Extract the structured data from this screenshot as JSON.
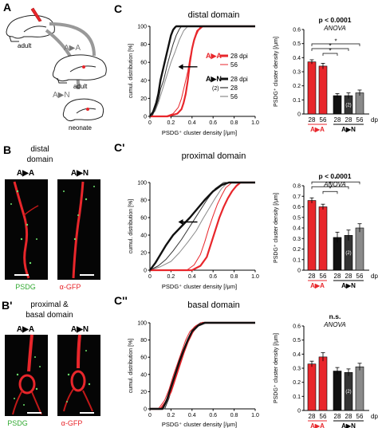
{
  "colors": {
    "red": "#e8262b",
    "black": "#111111",
    "darkgray": "#333333",
    "gray": "#8a8a8a",
    "green": "#33aa33",
    "micro_bg": "#050505",
    "dendrite": "#e8262b"
  },
  "panels": {
    "A": {
      "label": "A",
      "adult_top": "adult",
      "aa": "A▶A",
      "adult_mid": "adult",
      "an": "A▶N",
      "neonate": "neonate"
    },
    "B": {
      "label": "B",
      "title1": "distal",
      "title2": "domain",
      "img1_label": "A▶A",
      "img2_label": "A▶N",
      "stain1": "PSDG",
      "stain2": "α-GFP"
    },
    "B2": {
      "label": "B'",
      "title1": "proximal  &",
      "title2": "basal domain",
      "img1_label": "A▶A",
      "img2_label": "A▶N",
      "stain1": "PSDG",
      "stain2": "α-GFP"
    }
  },
  "cdf_common": {
    "ylabel": "cumul. distribution [%]",
    "xlabel": "PSDG⁺ cluster density [/μm]",
    "xticks": [
      "0",
      "0.2",
      "0.4",
      "0.6",
      "0.8",
      "1.0"
    ],
    "yticks": [
      "0",
      "20",
      "40",
      "60",
      "80",
      "100"
    ]
  },
  "bar_common": {
    "ylabel": "PSDG⁺ cluster density [/μm]",
    "xticks": [
      "28",
      "28",
      "28",
      "56",
      "dpi"
    ],
    "group1": "A▶A",
    "group2": "A▶N",
    "n_mark": "(2)"
  },
  "legend": {
    "aa_label": "A▶A",
    "aa_28": "28 dpi",
    "aa_56": "56",
    "an_label": "A▶N",
    "an_28dpi": "28 dpi",
    "an_2": "(2)",
    "an_28": "28",
    "an_56": "56"
  },
  "chart_data": [
    {
      "panel": "C",
      "type": "line",
      "title": "distal domain",
      "xlabel": "PSDG⁺ cluster density [/μm]",
      "ylabel": "cumul. distribution [%]",
      "xlim": [
        0,
        1.0
      ],
      "ylim": [
        0,
        100
      ],
      "series": [
        {
          "name": "A▶A 28 dpi",
          "x": [
            0.17,
            0.26,
            0.3,
            0.32,
            0.34,
            0.36,
            0.38,
            0.4,
            0.42,
            0.45,
            0.5
          ],
          "y": [
            0,
            3,
            8,
            15,
            25,
            40,
            60,
            75,
            85,
            95,
            100
          ]
        },
        {
          "name": "A▶A 56",
          "x": [
            0.15,
            0.22,
            0.27,
            0.3,
            0.33,
            0.36,
            0.38,
            0.41,
            0.44,
            0.48
          ],
          "y": [
            0,
            3,
            10,
            20,
            35,
            50,
            65,
            80,
            90,
            100
          ]
        },
        {
          "name": "A▶N 28 dpi",
          "x": [
            0.0,
            0.03,
            0.06,
            0.08,
            0.1,
            0.12,
            0.14,
            0.16,
            0.18,
            0.2,
            0.22,
            0.24,
            0.25
          ],
          "y": [
            0,
            5,
            15,
            25,
            40,
            50,
            60,
            70,
            80,
            90,
            96,
            99,
            100
          ]
        },
        {
          "name": "A▶N (2) 28",
          "x": [
            0.02,
            0.05,
            0.08,
            0.1,
            0.13,
            0.16,
            0.19,
            0.22,
            0.25,
            0.28,
            0.3
          ],
          "y": [
            0,
            8,
            18,
            30,
            40,
            55,
            68,
            80,
            90,
            97,
            100
          ]
        },
        {
          "name": "A▶N 56",
          "x": [
            0.0,
            0.05,
            0.08,
            0.12,
            0.16,
            0.2,
            0.24,
            0.28,
            0.32,
            0.36
          ],
          "y": [
            0,
            6,
            15,
            30,
            45,
            60,
            72,
            85,
            95,
            100
          ]
        }
      ],
      "annotations": [
        "←"
      ]
    },
    {
      "panel": "C",
      "type": "bar",
      "title": "p < 0.0001",
      "subtitle": "ANOVA",
      "ylabel": "PSDG⁺ cluster density [/μm]",
      "ylim": [
        0,
        0.6
      ],
      "yticks": [
        "0",
        "0.1",
        "0.2",
        "0.3",
        "0.4",
        "0.5",
        "0.6"
      ],
      "categories": [
        "28",
        "56",
        "28",
        "28",
        "56"
      ],
      "values": [
        0.37,
        0.34,
        0.13,
        0.13,
        0.15
      ],
      "errors": [
        0.015,
        0.02,
        0.015,
        0.02,
        0.02
      ],
      "colors": [
        "#e8262b",
        "#e8262b",
        "#111111",
        "#333333",
        "#8a8a8a"
      ],
      "significance": [
        "*",
        "*",
        "*"
      ],
      "n_note": "(2)"
    },
    {
      "panel": "C'",
      "type": "line",
      "title": "proximal domain",
      "xlabel": "PSDG⁺ cluster density [/μm]",
      "ylabel": "cumul. distribution [%]",
      "xlim": [
        0,
        1.0
      ],
      "ylim": [
        0,
        100
      ],
      "series": [
        {
          "name": "A▶A 28 dpi",
          "x": [
            0.4,
            0.48,
            0.54,
            0.58,
            0.62,
            0.66,
            0.7,
            0.74,
            0.78,
            0.82,
            0.86
          ],
          "y": [
            0,
            5,
            15,
            30,
            45,
            60,
            72,
            82,
            90,
            96,
            100
          ]
        },
        {
          "name": "A▶A 56",
          "x": [
            0.35,
            0.42,
            0.48,
            0.52,
            0.56,
            0.6,
            0.64,
            0.68,
            0.72,
            0.78
          ],
          "y": [
            0,
            6,
            18,
            32,
            48,
            62,
            75,
            85,
            94,
            100
          ]
        },
        {
          "name": "A▶N 28 dpi",
          "x": [
            0.0,
            0.05,
            0.1,
            0.15,
            0.22,
            0.3,
            0.38,
            0.45,
            0.52,
            0.6,
            0.68,
            0.75
          ],
          "y": [
            0,
            8,
            18,
            28,
            40,
            50,
            60,
            70,
            80,
            90,
            97,
            100
          ]
        },
        {
          "name": "A▶N (2) 28",
          "x": [
            0.0,
            0.08,
            0.15,
            0.22,
            0.3,
            0.38,
            0.46,
            0.54,
            0.62,
            0.7
          ],
          "y": [
            0,
            5,
            12,
            22,
            35,
            50,
            65,
            80,
            93,
            100
          ]
        },
        {
          "name": "A▶N 56",
          "x": [
            0.0,
            0.1,
            0.2,
            0.28,
            0.36,
            0.44,
            0.5,
            0.56,
            0.62,
            0.68,
            0.74
          ],
          "y": [
            0,
            4,
            10,
            20,
            32,
            45,
            58,
            70,
            82,
            93,
            100
          ]
        }
      ],
      "annotations": [
        "←"
      ]
    },
    {
      "panel": "C'",
      "type": "bar",
      "title": "p < 0.0001",
      "subtitle": "ANOVA",
      "ylabel": "PSDG⁺ cluster density [/μm]",
      "ylim": [
        0,
        0.8
      ],
      "yticks": [
        "0",
        "0.1",
        "0.2",
        "0.3",
        "0.4",
        "0.5",
        "0.6",
        "0.7",
        "0.8"
      ],
      "categories": [
        "28",
        "56",
        "28",
        "28",
        "56"
      ],
      "values": [
        0.66,
        0.6,
        0.31,
        0.33,
        0.4
      ],
      "errors": [
        0.025,
        0.025,
        0.05,
        0.05,
        0.04
      ],
      "colors": [
        "#e8262b",
        "#e8262b",
        "#111111",
        "#333333",
        "#8a8a8a"
      ],
      "significance": [
        "*",
        "*",
        "*"
      ],
      "n_note": "(2)"
    },
    {
      "panel": "C''",
      "type": "line",
      "title": "basal domain",
      "xlabel": "PSDG⁺ cluster density [/μm]",
      "ylabel": "cumul. distribution [%]",
      "xlim": [
        0,
        1.0
      ],
      "ylim": [
        0,
        100
      ],
      "series": [
        {
          "name": "A▶A 28 dpi",
          "x": [
            0.1,
            0.15,
            0.2,
            0.24,
            0.28,
            0.32,
            0.36,
            0.4,
            0.44,
            0.5
          ],
          "y": [
            0,
            8,
            20,
            35,
            50,
            65,
            78,
            88,
            96,
            100
          ]
        },
        {
          "name": "A▶A 56",
          "x": [
            0.08,
            0.14,
            0.18,
            0.22,
            0.26,
            0.3,
            0.34,
            0.38,
            0.44,
            0.52
          ],
          "y": [
            0,
            10,
            22,
            38,
            52,
            66,
            80,
            90,
            97,
            100
          ]
        },
        {
          "name": "A▶N 28 dpi",
          "x": [
            0.12,
            0.16,
            0.2,
            0.24,
            0.28,
            0.32,
            0.36,
            0.4,
            0.46,
            0.52
          ],
          "y": [
            0,
            10,
            25,
            40,
            55,
            68,
            80,
            90,
            97,
            100
          ]
        },
        {
          "name": "A▶N (2) 28",
          "x": [
            0.14,
            0.18,
            0.22,
            0.26,
            0.3,
            0.34,
            0.38,
            0.42,
            0.48
          ],
          "y": [
            0,
            12,
            28,
            45,
            60,
            74,
            86,
            95,
            100
          ]
        },
        {
          "name": "A▶N 56",
          "x": [
            0.1,
            0.15,
            0.19,
            0.23,
            0.27,
            0.31,
            0.35,
            0.4,
            0.46,
            0.54
          ],
          "y": [
            0,
            8,
            20,
            35,
            50,
            64,
            78,
            88,
            96,
            100
          ]
        }
      ]
    },
    {
      "panel": "C''",
      "type": "bar",
      "title": "n.s.",
      "subtitle": "ANOVA",
      "ylabel": "PSDG⁺ cluster density [/μm]",
      "ylim": [
        0,
        0.6
      ],
      "yticks": [
        "0",
        "0.1",
        "0.2",
        "0.3",
        "0.4",
        "0.5",
        "0.6"
      ],
      "categories": [
        "28",
        "56",
        "28",
        "28",
        "56"
      ],
      "values": [
        0.33,
        0.38,
        0.28,
        0.27,
        0.31
      ],
      "errors": [
        0.02,
        0.03,
        0.025,
        0.025,
        0.025
      ],
      "colors": [
        "#e8262b",
        "#e8262b",
        "#111111",
        "#333333",
        "#8a8a8a"
      ],
      "significance": [],
      "n_note": "(2)"
    }
  ]
}
